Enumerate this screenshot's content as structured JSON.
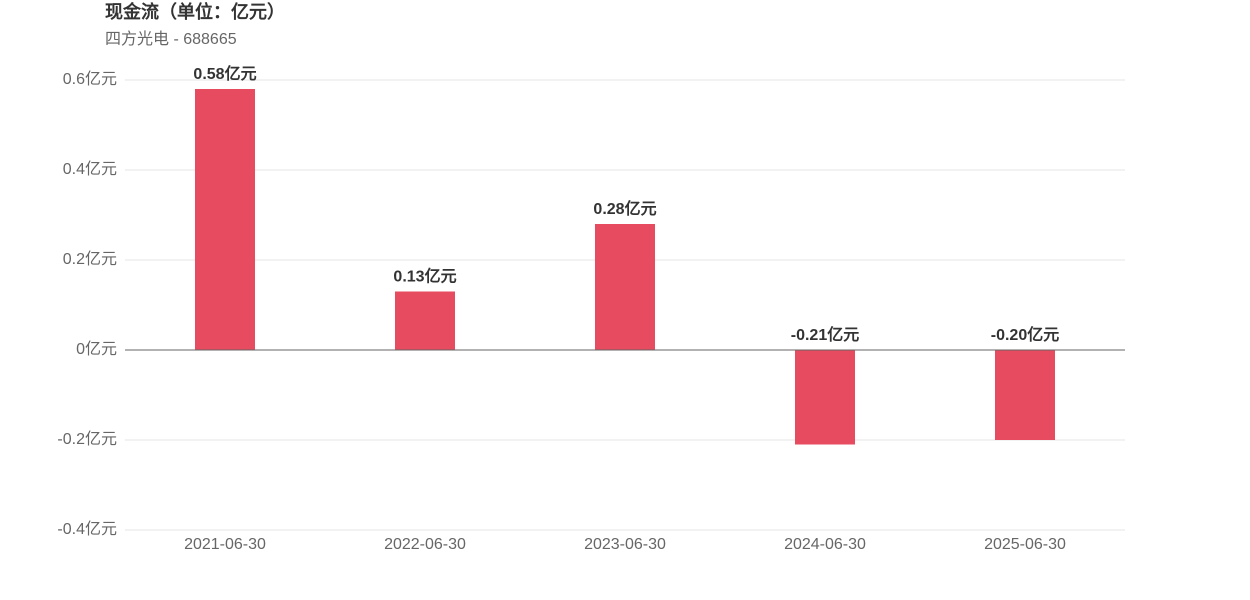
{
  "chart_data": {
    "type": "bar",
    "title": "现金流（单位：亿元）",
    "subtitle": "四方光电 - 688665",
    "categories": [
      "2021-06-30",
      "2022-06-30",
      "2023-06-30",
      "2024-06-30",
      "2025-06-30"
    ],
    "values": [
      0.58,
      0.13,
      0.28,
      -0.21,
      -0.2
    ],
    "value_labels": [
      "0.58亿元",
      "0.13亿元",
      "0.28亿元",
      "-0.21亿元",
      "-0.20亿元"
    ],
    "color": "#e64b5f",
    "ylim": [
      -0.4,
      0.6
    ],
    "yticks": [
      {
        "value": -0.4,
        "label": "-0.4亿元"
      },
      {
        "value": -0.2,
        "label": "-0.2亿元"
      },
      {
        "value": 0,
        "label": "0亿元"
      },
      {
        "value": 0.2,
        "label": "0.2亿元"
      },
      {
        "value": 0.4,
        "label": "0.4亿元"
      },
      {
        "value": 0.6,
        "label": "0.6亿元"
      }
    ],
    "grid": true
  }
}
